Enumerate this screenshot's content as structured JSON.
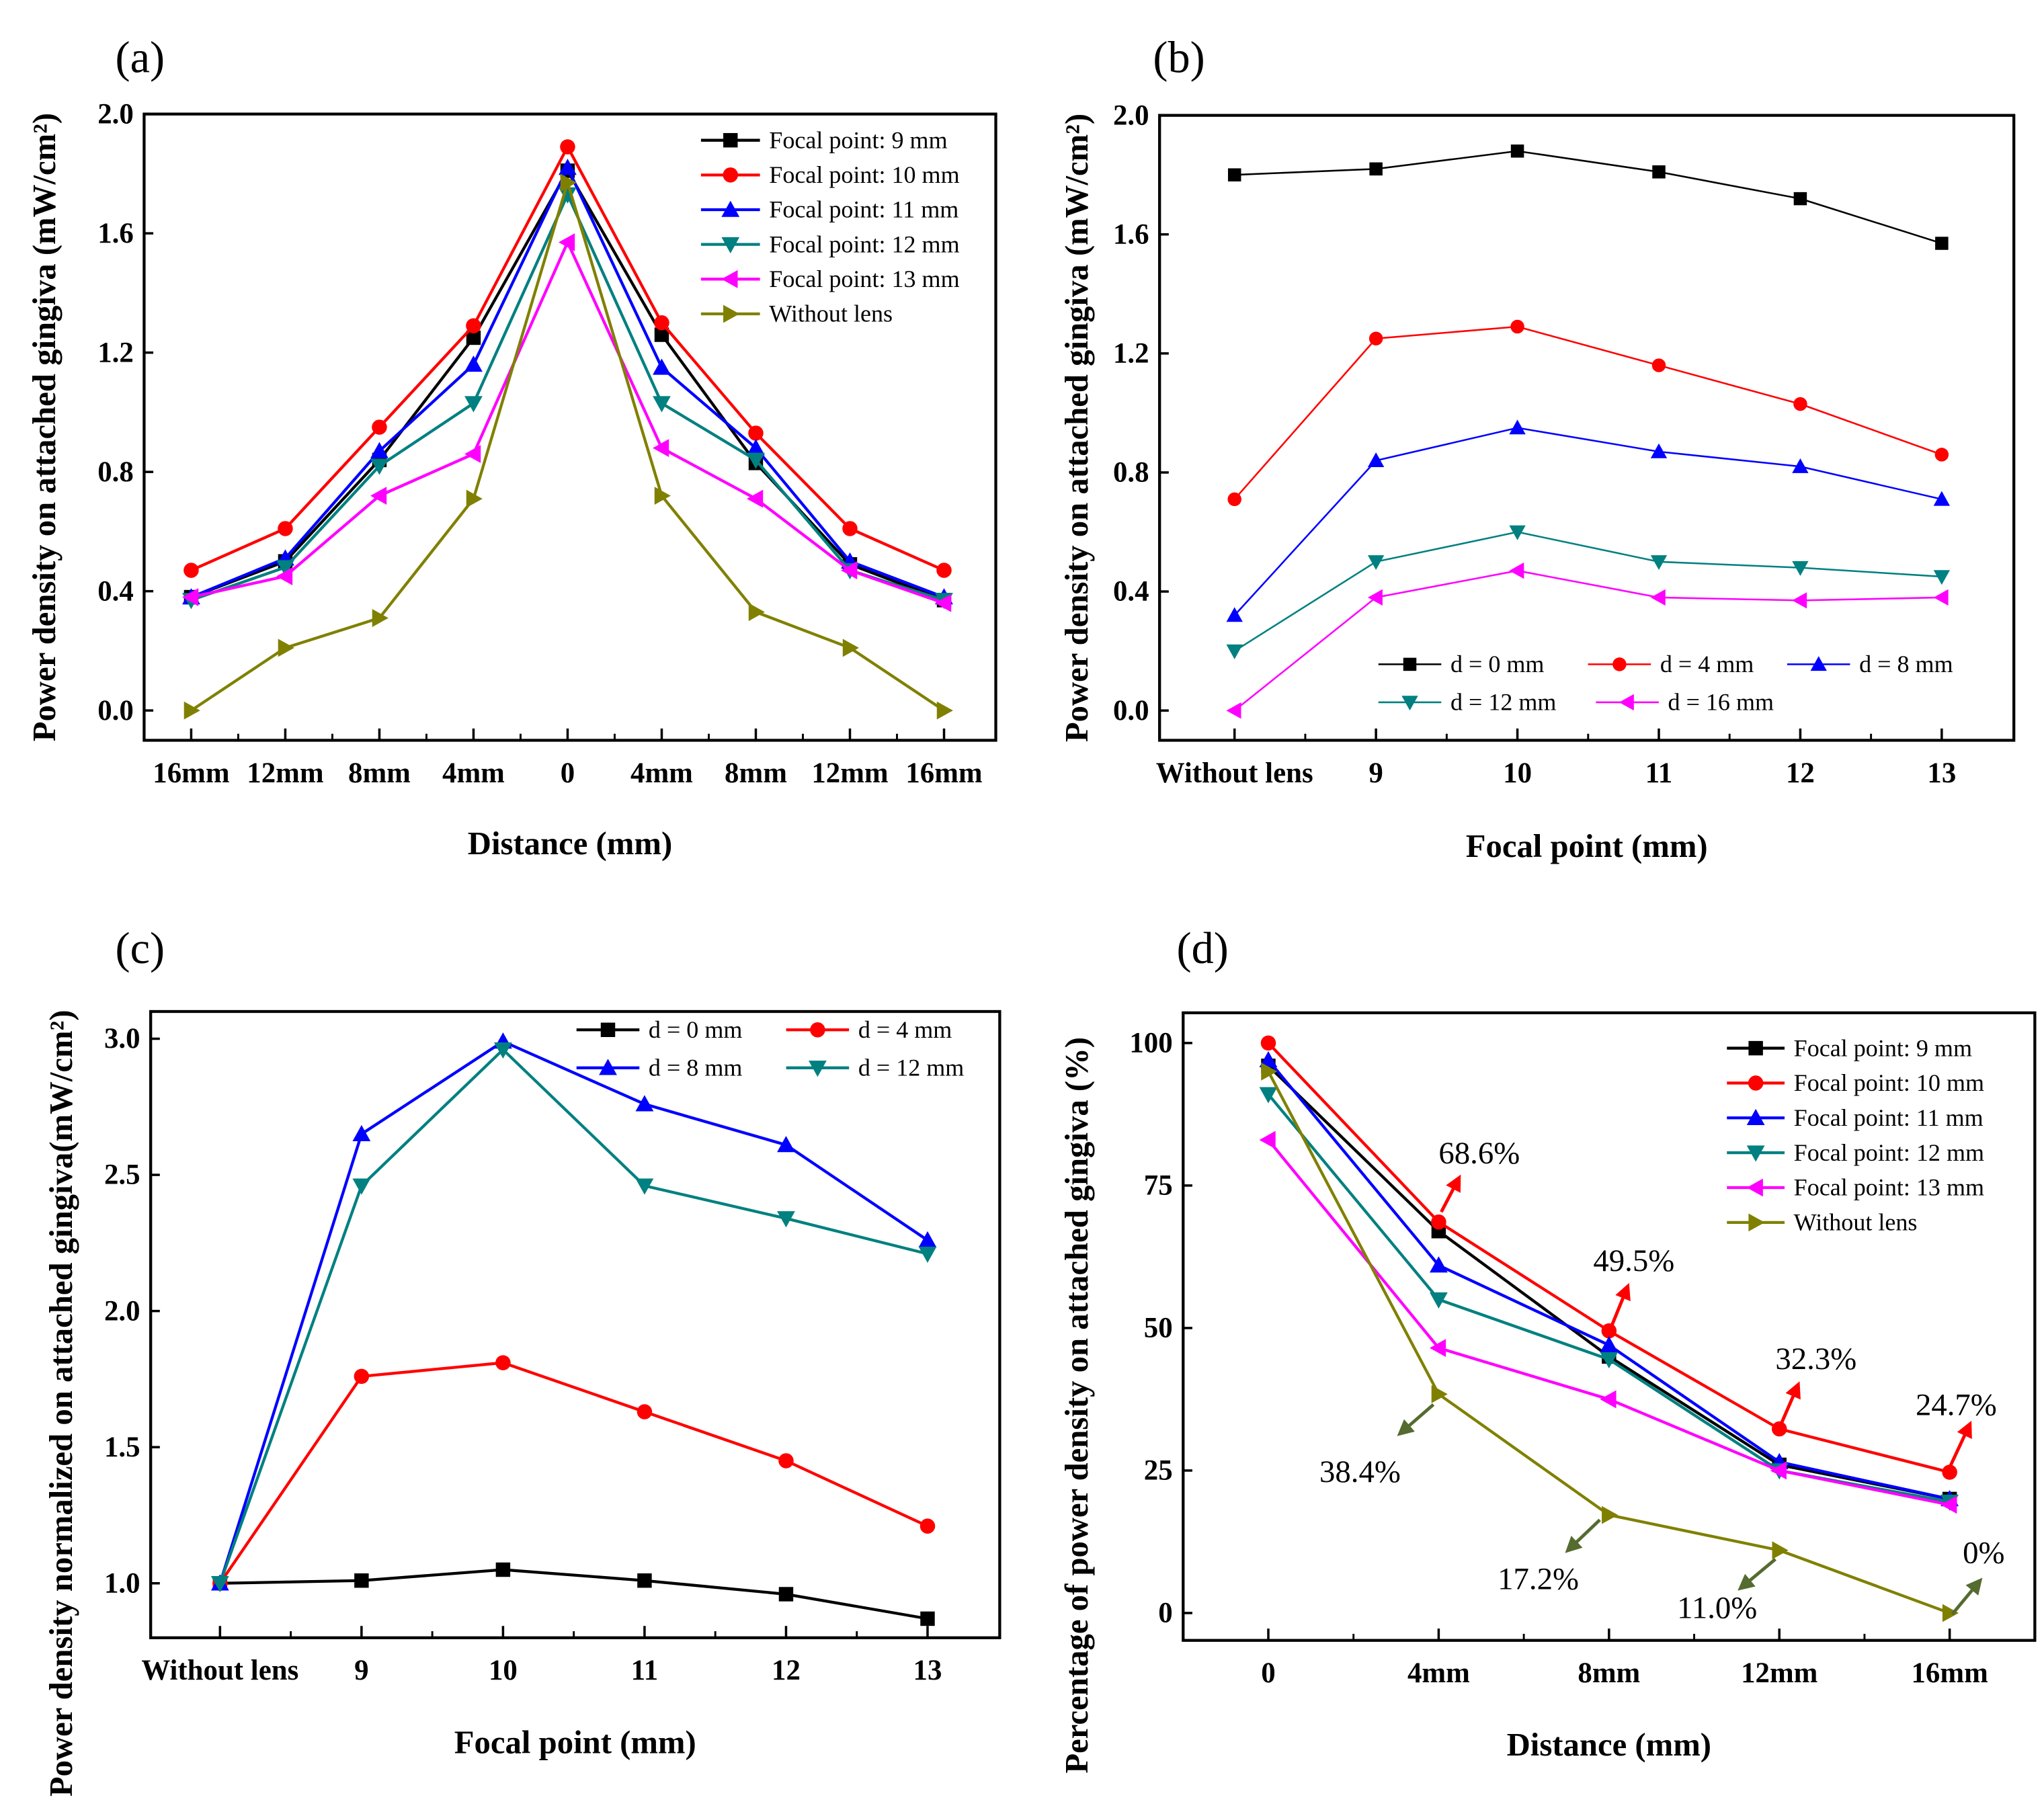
{
  "chart_data": [
    {
      "panel": "(a)",
      "type": "line",
      "xlabel": "Distance (mm)",
      "ylabel": "Power density on attached gingiva (mW/cm²)",
      "x": [
        -16,
        -12,
        -8,
        -4,
        0,
        4,
        8,
        12,
        16
      ],
      "xticklabels": [
        "16mm",
        "12mm",
        "8mm",
        "4mm",
        "0",
        "4mm",
        "8mm",
        "12mm",
        "16mm"
      ],
      "xlim": [
        -18,
        18.2
      ],
      "ylim": [
        -0.1,
        2.0
      ],
      "yticks": [
        0.0,
        0.4,
        0.8,
        1.2,
        1.6,
        2.0
      ],
      "yticklabels": [
        "0.0",
        "0.4",
        "0.8",
        "1.2",
        "1.6",
        "2.0"
      ],
      "legend_position": "top-right",
      "series": [
        {
          "name": "Focal point: 9 mm",
          "color": "#000000",
          "marker": "square",
          "values": [
            0.38,
            0.5,
            0.84,
            1.25,
            1.81,
            1.26,
            0.83,
            0.49,
            0.37
          ]
        },
        {
          "name": "Focal point: 10 mm",
          "color": "#ff0000",
          "marker": "circle",
          "values": [
            0.47,
            0.61,
            0.95,
            1.29,
            1.89,
            1.3,
            0.93,
            0.61,
            0.47
          ]
        },
        {
          "name": "Focal point: 11 mm",
          "color": "#0000ff",
          "marker": "triangle-up",
          "values": [
            0.38,
            0.51,
            0.87,
            1.16,
            1.82,
            1.15,
            0.88,
            0.5,
            0.38
          ]
        },
        {
          "name": "Focal point: 12 mm",
          "color": "#008080",
          "marker": "triangle-down",
          "values": [
            0.37,
            0.48,
            0.82,
            1.03,
            1.73,
            1.03,
            0.84,
            0.47,
            0.37
          ]
        },
        {
          "name": "Focal point: 13 mm",
          "color": "#ff00ff",
          "marker": "triangle-left",
          "values": [
            0.38,
            0.45,
            0.72,
            0.86,
            1.57,
            0.88,
            0.71,
            0.47,
            0.36
          ]
        },
        {
          "name": "Without lens",
          "color": "#808000",
          "marker": "triangle-right",
          "values": [
            0.0,
            0.21,
            0.31,
            0.71,
            1.77,
            0.72,
            0.33,
            0.21,
            0.0
          ]
        }
      ]
    },
    {
      "panel": "(b)",
      "type": "line",
      "xlabel": "Focal point (mm)",
      "ylabel": "Power density on attached gingiva (mW/cm²)",
      "x": [
        0,
        1,
        2,
        3,
        4,
        5
      ],
      "xticklabels": [
        "Without lens",
        "9",
        "10",
        "11",
        "12",
        "13"
      ],
      "xlim": [
        -0.53,
        5.51
      ],
      "ylim": [
        -0.1,
        2.0
      ],
      "yticks": [
        0.0,
        0.4,
        0.8,
        1.2,
        1.6,
        2.0
      ],
      "yticklabels": [
        "0.0",
        "0.4",
        "0.8",
        "1.2",
        "1.6",
        "2.0"
      ],
      "legend_position": "bottom",
      "series": [
        {
          "name": "d = 0 mm",
          "color": "#000000",
          "marker": "square",
          "values": [
            1.8,
            1.82,
            1.88,
            1.81,
            1.72,
            1.57
          ]
        },
        {
          "name": "d = 4 mm",
          "color": "#ff0000",
          "marker": "circle",
          "values": [
            0.71,
            1.25,
            1.29,
            1.16,
            1.03,
            0.86
          ]
        },
        {
          "name": "d = 8 mm",
          "color": "#0000ff",
          "marker": "triangle-up",
          "values": [
            0.32,
            0.84,
            0.95,
            0.87,
            0.82,
            0.71
          ]
        },
        {
          "name": "d = 12 mm",
          "color": "#008080",
          "marker": "triangle-down",
          "values": [
            0.2,
            0.5,
            0.6,
            0.5,
            0.48,
            0.45
          ]
        },
        {
          "name": "d = 16 mm",
          "color": "#ff00ff",
          "marker": "triangle-left",
          "values": [
            0.0,
            0.38,
            0.47,
            0.38,
            0.37,
            0.38
          ]
        }
      ]
    },
    {
      "panel": "(c)",
      "type": "line",
      "xlabel": "Focal point (mm)",
      "ylabel": "Power density normalized on attached gingiva(mW/cm²)",
      "x": [
        0,
        1,
        2,
        3,
        4,
        5
      ],
      "xticklabels": [
        "Without lens",
        "9",
        "10",
        "11",
        "12",
        "13"
      ],
      "xlim": [
        -0.49,
        5.51
      ],
      "ylim": [
        0.8,
        3.1
      ],
      "yticks": [
        1.0,
        1.5,
        2.0,
        2.5,
        3.0
      ],
      "yticklabels": [
        "1.0",
        "1.5",
        "2.0",
        "2.5",
        "3.0"
      ],
      "legend_position": "top-right",
      "series": [
        {
          "name": "d = 0 mm",
          "color": "#000000",
          "marker": "square",
          "values": [
            1.0,
            1.01,
            1.05,
            1.01,
            0.96,
            0.87
          ]
        },
        {
          "name": "d = 4 mm",
          "color": "#ff0000",
          "marker": "circle",
          "values": [
            1.0,
            1.76,
            1.81,
            1.63,
            1.45,
            1.21
          ]
        },
        {
          "name": "d = 8 mm",
          "color": "#0000ff",
          "marker": "triangle-up",
          "values": [
            1.0,
            2.65,
            2.99,
            2.76,
            2.61,
            2.26
          ]
        },
        {
          "name": "d = 12 mm",
          "color": "#008080",
          "marker": "triangle-down",
          "values": [
            1.0,
            2.46,
            2.96,
            2.46,
            2.34,
            2.21
          ]
        }
      ]
    },
    {
      "panel": "(d)",
      "type": "line",
      "xlabel": "Distance (mm)",
      "ylabel": "Percentage of power density on attached gingiva (%)",
      "x": [
        0,
        4,
        8,
        12,
        16
      ],
      "xticklabels": [
        "0",
        "4mm",
        "8mm",
        "12mm",
        "16mm"
      ],
      "xlim": [
        -2.0,
        18.0
      ],
      "ylim": [
        -4.8,
        105.3
      ],
      "yticks": [
        0,
        25,
        50,
        75,
        100
      ],
      "yticklabels": [
        "0",
        "25",
        "50",
        "75",
        "100"
      ],
      "legend_position": "top-right",
      "series": [
        {
          "name": "Focal point: 9 mm",
          "color": "#000000",
          "marker": "square",
          "values": [
            96,
            67,
            45,
            26,
            20
          ]
        },
        {
          "name": "Focal point: 10 mm",
          "color": "#ff0000",
          "marker": "circle",
          "values": [
            100,
            68.6,
            49.5,
            32.3,
            24.7
          ]
        },
        {
          "name": "Focal point: 11 mm",
          "color": "#0000ff",
          "marker": "triangle-up",
          "values": [
            97,
            61,
            47,
            26.5,
            20
          ]
        },
        {
          "name": "Focal point: 12 mm",
          "color": "#008080",
          "marker": "triangle-down",
          "values": [
            91,
            55,
            44.5,
            25,
            19.5
          ]
        },
        {
          "name": "Focal point: 13 mm",
          "color": "#ff00ff",
          "marker": "triangle-left",
          "values": [
            83,
            46.5,
            37.5,
            25,
            19
          ]
        },
        {
          "name": "Without lens",
          "color": "#808000",
          "marker": "triangle-right",
          "values": [
            95,
            38.4,
            17.2,
            11.0,
            0
          ]
        }
      ],
      "annotations": [
        {
          "text": "68.6%",
          "color": "#ff0000"
        },
        {
          "text": "49.5%",
          "color": "#ff0000"
        },
        {
          "text": "32.3%",
          "color": "#ff0000"
        },
        {
          "text": "24.7%",
          "color": "#ff0000"
        },
        {
          "text": "38.4%",
          "color": "#556b2f"
        },
        {
          "text": "17.2%",
          "color": "#556b2f"
        },
        {
          "text": "11.0%",
          "color": "#556b2f"
        },
        {
          "text": "0%",
          "color": "#556b2f"
        }
      ]
    }
  ]
}
